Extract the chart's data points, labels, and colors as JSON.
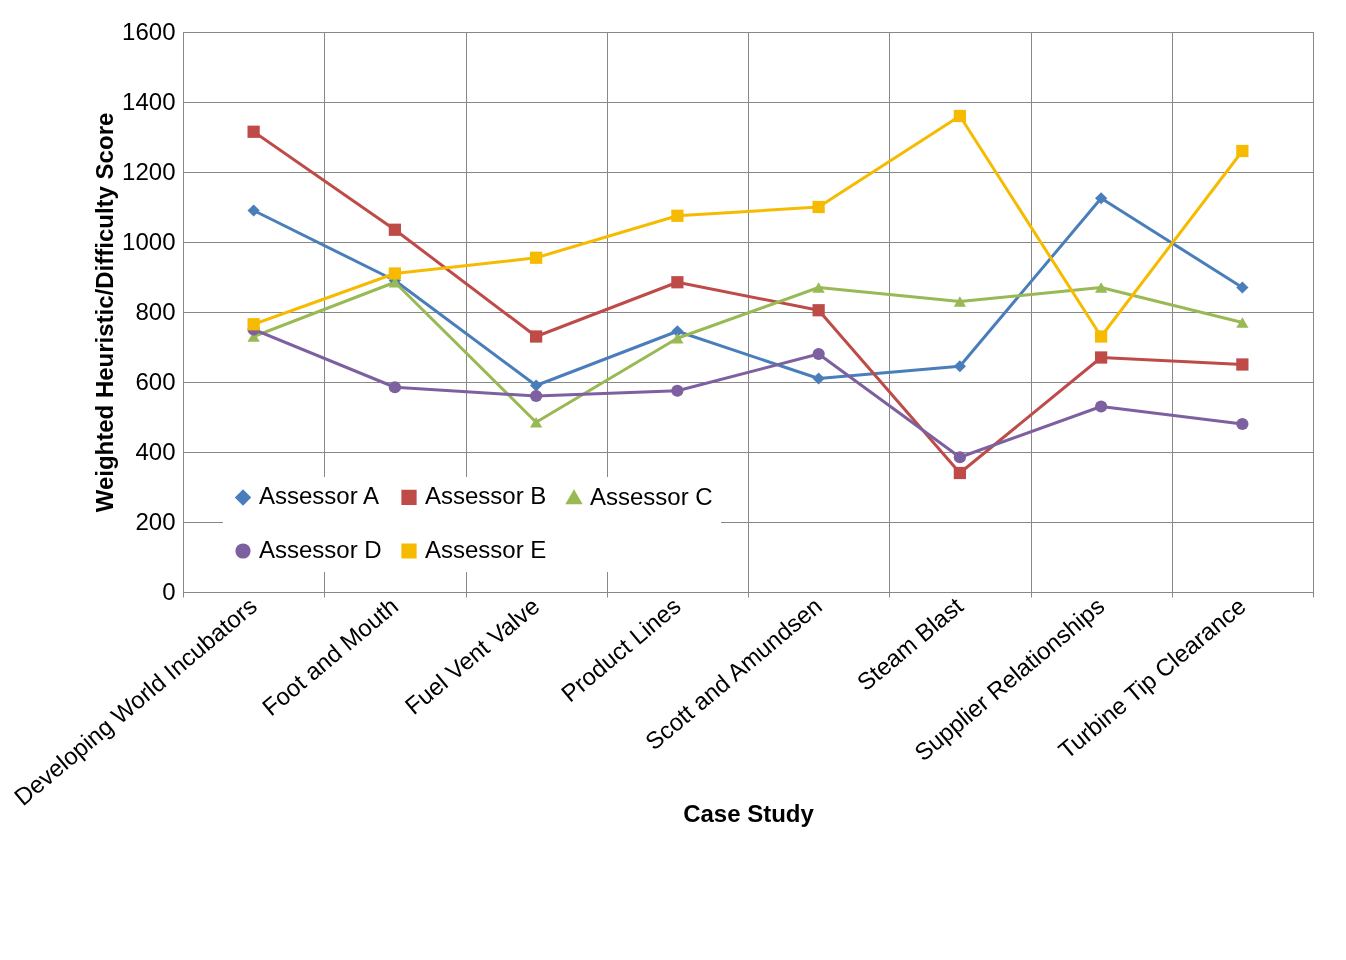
{
  "chart_data": {
    "type": "line",
    "xlabel": "Case Study",
    "ylabel": "Weighted Heuristic/Difficulty Score",
    "categories": [
      "Developing World Incubators",
      "Foot and Mouth",
      "Fuel Vent Valve",
      "Product Lines",
      "Scott and Amundsen",
      "Steam Blast",
      "Supplier Relationships",
      "Turbine Tip Clearance"
    ],
    "series": [
      {
        "name": "Assessor A",
        "color": "#4a7ebb",
        "marker": "diamond",
        "values": [
          1090,
          890,
          590,
          745,
          610,
          645,
          1125,
          870
        ]
      },
      {
        "name": "Assessor B",
        "color": "#be4b48",
        "marker": "square",
        "values": [
          1315,
          1035,
          730,
          885,
          805,
          340,
          670,
          650
        ]
      },
      {
        "name": "Assessor C",
        "color": "#98b954",
        "marker": "triangle",
        "values": [
          730,
          885,
          485,
          725,
          870,
          830,
          870,
          770
        ]
      },
      {
        "name": "Assessor D",
        "color": "#7d60a0",
        "marker": "circle",
        "values": [
          750,
          585,
          560,
          575,
          680,
          385,
          530,
          480
        ]
      },
      {
        "name": "Assessor E",
        "color": "#f6bb00",
        "marker": "square",
        "values": [
          765,
          910,
          955,
          1075,
          1100,
          1360,
          730,
          1260
        ]
      }
    ],
    "ylim": [
      0,
      1600
    ],
    "yticks": [
      0,
      200,
      400,
      600,
      800,
      1000,
      1200,
      1400,
      1600
    ],
    "grid": true,
    "legend": "bottom left"
  }
}
